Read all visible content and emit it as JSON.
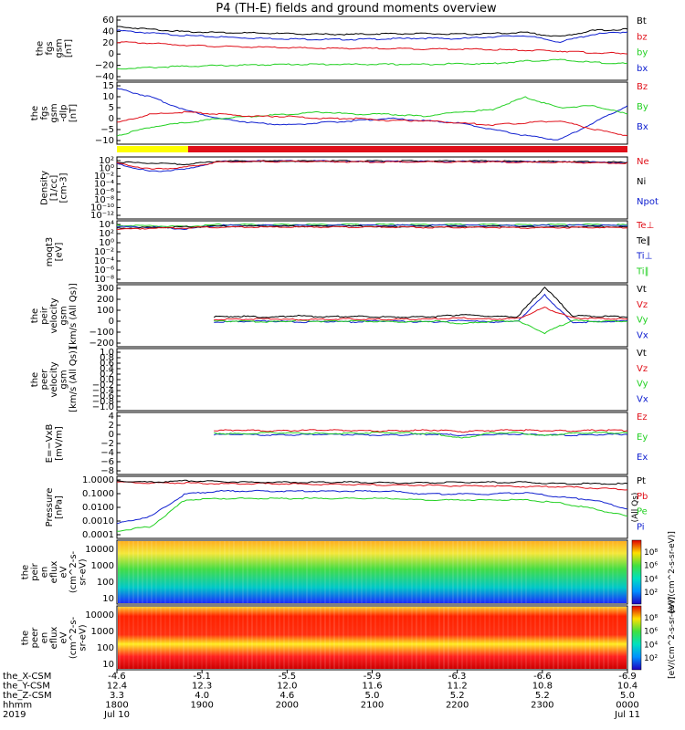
{
  "title": "P4 (TH-E) fields and ground moments overview",
  "colors": {
    "black": "#000000",
    "red": "#e0101a",
    "green": "#22d022",
    "blue": "#1020d0",
    "yellow": "#ffff00"
  },
  "time_axis": {
    "start_hhmm": "1800",
    "end_hhmm": "0000",
    "ticks": [
      {
        "hhmm": "1800",
        "X": "-4.6",
        "Y": "12.4",
        "Z": "3.3"
      },
      {
        "hhmm": "1900",
        "X": "-5.1",
        "Y": "12.3",
        "Z": "4.0"
      },
      {
        "hhmm": "2000",
        "X": "-5.5",
        "Y": "12.0",
        "Z": "4.6"
      },
      {
        "hhmm": "2100",
        "X": "-5.9",
        "Y": "11.6",
        "Z": "5.0"
      },
      {
        "hhmm": "2200",
        "X": "-6.3",
        "Y": "11.2",
        "Z": "5.2"
      },
      {
        "hhmm": "2300",
        "X": "-6.6",
        "Y": "10.8",
        "Z": "5.2"
      },
      {
        "hhmm": "0000",
        "X": "-6.9",
        "Y": "10.4",
        "Z": "5.0"
      }
    ],
    "row_labels": [
      "the_X-CSM",
      "the_Y-CSM",
      "the_Z-CSM",
      "hhmm",
      "2019"
    ],
    "date_left": "Jul 10",
    "date_right": "Jul 11"
  },
  "chart_data": [
    {
      "type": "line",
      "title": "",
      "ylabel": [
        "the",
        "fgs",
        "gsm",
        "[nT]"
      ],
      "yticks": [
        "60",
        "40",
        "20",
        "0",
        "−20",
        "−40"
      ],
      "ylim": [
        -40,
        60
      ],
      "legend": [
        {
          "name": "Bt",
          "color": "black"
        },
        {
          "name": "bz",
          "color": "red"
        },
        {
          "name": "by",
          "color": "green"
        },
        {
          "name": "bx",
          "color": "blue"
        }
      ],
      "series": [
        {
          "name": "Bt",
          "color": "black",
          "values": [
            44,
            40,
            36,
            35,
            34,
            33,
            32,
            32,
            33,
            33,
            32,
            33,
            35,
            28,
            38,
            40
          ]
        },
        {
          "name": "bz",
          "color": "red",
          "values": [
            20,
            18,
            15,
            13,
            12,
            11,
            10,
            10,
            10,
            9,
            9,
            8,
            7,
            6,
            3,
            2
          ]
        },
        {
          "name": "by",
          "color": "green",
          "values": [
            -22,
            -20,
            -18,
            -17,
            -16,
            -15,
            -15,
            -15,
            -15,
            -15,
            -14,
            -14,
            -10,
            -8,
            -12,
            -14
          ]
        },
        {
          "name": "bx",
          "color": "blue",
          "values": [
            38,
            34,
            30,
            28,
            26,
            25,
            24,
            24,
            25,
            26,
            25,
            28,
            30,
            20,
            32,
            36
          ]
        }
      ]
    },
    {
      "type": "line",
      "title": "",
      "ylabel": [
        "the",
        "fgs",
        "gsm",
        "-dlp",
        "[nT]"
      ],
      "yticks": [
        "15",
        "10",
        "5",
        "0",
        "−5",
        "−10"
      ],
      "ylim": [
        -12,
        17
      ],
      "legend": [
        {
          "name": "Bz",
          "color": "red"
        },
        {
          "name": "By",
          "color": "green"
        },
        {
          "name": "Bx",
          "color": "blue"
        }
      ],
      "series": [
        {
          "name": "Bz",
          "color": "red",
          "values": [
            -2,
            2,
            3,
            2,
            1,
            1,
            0,
            0,
            -1,
            -1,
            -2,
            -3,
            -2,
            -1,
            -5,
            -8
          ]
        },
        {
          "name": "By",
          "color": "green",
          "values": [
            -8,
            -4,
            -2,
            0,
            1,
            2,
            3,
            2,
            2,
            1,
            3,
            4,
            10,
            5,
            6,
            2
          ]
        },
        {
          "name": "Bx",
          "color": "blue",
          "values": [
            14,
            10,
            4,
            0,
            -2,
            -3,
            -2,
            -1,
            0,
            -1,
            -2,
            -5,
            -8,
            -10,
            -2,
            6
          ]
        }
      ]
    },
    {
      "type": "line",
      "title": "",
      "ylabel": [
        "Density",
        "[1/cc]",
        "[cm-3]"
      ],
      "yticks": [
        "10²",
        "10⁰",
        "10⁻²",
        "10⁻⁴",
        "10⁻⁶",
        "10⁻⁸",
        "10⁻¹⁰",
        "10⁻¹²"
      ],
      "ylim": [
        -13,
        2
      ],
      "log": true,
      "legend": [
        {
          "name": "Ne",
          "color": "red"
        },
        {
          "name": "Ni",
          "color": "black"
        },
        {
          "name": "Npot",
          "color": "blue"
        }
      ],
      "series": [
        {
          "name": "Ne",
          "color": "red",
          "values": [
            0.5,
            -1,
            -0.5,
            0.8,
            0.9,
            0.9,
            0.9,
            0.8,
            0.8,
            0.8,
            0.8,
            0.8,
            0.7,
            0.7,
            0.6,
            0.5
          ]
        },
        {
          "name": "Ni",
          "color": "black",
          "values": [
            0.8,
            0.5,
            0.2,
            1,
            1,
            1,
            1,
            1,
            1,
            1,
            1,
            1,
            0.9,
            0.9,
            0.8,
            0.7
          ]
        },
        {
          "name": "Npot",
          "color": "blue",
          "values": [
            0.3,
            -1.5,
            -1,
            0.9,
            1,
            1,
            1,
            0.9,
            0.9,
            0.9,
            0.9,
            0.9,
            0.8,
            0.8,
            0.7,
            0.6
          ]
        }
      ]
    },
    {
      "type": "line",
      "title": "",
      "ylabel": [
        "moqt3",
        "[eV]"
      ],
      "yticks": [
        "10⁴",
        "10²",
        "10⁰",
        "10⁻²",
        "10⁻⁴",
        "10⁻⁶",
        "10⁻⁸"
      ],
      "ylim": [
        -10,
        5
      ],
      "log": true,
      "legend": [
        {
          "name": "Te⊥",
          "color": "red"
        },
        {
          "name": "Te∥",
          "color": "black"
        },
        {
          "name": "Ti⊥",
          "color": "blue"
        },
        {
          "name": "Ti∥",
          "color": "green"
        }
      ],
      "series": [
        {
          "name": "Te⊥",
          "color": "red",
          "values": [
            3,
            3.2,
            3.3,
            3.5,
            3.5,
            3.5,
            3.5,
            3.5,
            3.5,
            3.4,
            3.4,
            3.4,
            3.3,
            3.4,
            3.4,
            3.3
          ]
        },
        {
          "name": "Te∥",
          "color": "black",
          "values": [
            3.2,
            3.4,
            3.5,
            3.7,
            3.7,
            3.7,
            3.7,
            3.7,
            3.6,
            3.6,
            3.6,
            3.6,
            3.5,
            3.6,
            3.6,
            3.5
          ]
        },
        {
          "name": "Ti⊥",
          "color": "blue",
          "values": [
            3.6,
            3.5,
            3,
            3.9,
            3.9,
            3.9,
            3.9,
            3.9,
            3.9,
            3.9,
            3.9,
            3.9,
            3.8,
            3.9,
            3.9,
            3.9
          ]
        },
        {
          "name": "Ti∥",
          "color": "green",
          "values": [
            3.9,
            3.8,
            3.6,
            4.1,
            4.1,
            4.1,
            4.1,
            4.1,
            4.1,
            4.1,
            4.1,
            4.1,
            4.0,
            4.1,
            4.1,
            4.0
          ]
        }
      ]
    },
    {
      "type": "line",
      "title": "",
      "ylabel": [
        "the",
        "peir",
        "velocity",
        "gsm",
        "[km/s (All Qs)]"
      ],
      "yticks": [
        "300",
        "200",
        "100",
        "0",
        "−100",
        "−200"
      ],
      "ylim": [
        -220,
        320
      ],
      "legend": [
        {
          "name": "Vt",
          "color": "black"
        },
        {
          "name": "Vz",
          "color": "red"
        },
        {
          "name": "Vy",
          "color": "green"
        },
        {
          "name": "Vx",
          "color": "blue"
        }
      ],
      "start_fraction": 0.19,
      "series": [
        {
          "name": "Vt",
          "color": "black",
          "values": [
            40,
            45,
            35,
            50,
            40,
            45,
            40,
            38,
            42,
            60,
            45,
            40,
            300,
            50,
            45,
            40
          ]
        },
        {
          "name": "Vz",
          "color": "red",
          "values": [
            20,
            18,
            25,
            15,
            20,
            22,
            18,
            20,
            22,
            30,
            20,
            25,
            120,
            30,
            25,
            20
          ]
        },
        {
          "name": "Vy",
          "color": "green",
          "values": [
            0,
            5,
            -5,
            10,
            0,
            5,
            0,
            -5,
            5,
            -20,
            0,
            5,
            -100,
            10,
            0,
            5
          ]
        },
        {
          "name": "Vx",
          "color": "blue",
          "values": [
            -5,
            0,
            5,
            -5,
            0,
            -5,
            5,
            0,
            -5,
            10,
            -5,
            0,
            230,
            -10,
            0,
            5
          ]
        }
      ]
    },
    {
      "type": "line",
      "title": "",
      "ylabel": [
        "the",
        "peer",
        "velocity",
        "gsm",
        "[km/s (All Qs)]"
      ],
      "yticks": [
        "1.0",
        "0.8",
        "0.6",
        "0.4",
        "0.2",
        "0.0",
        "−0.2",
        "−0.4",
        "−0.6",
        "−0.8",
        "−1.0"
      ],
      "ylim": [
        -1,
        1
      ],
      "legend": [
        {
          "name": "Vt",
          "color": "black"
        },
        {
          "name": "Vz",
          "color": "red"
        },
        {
          "name": "Vy",
          "color": "green"
        },
        {
          "name": "Vx",
          "color": "blue"
        }
      ],
      "series": []
    },
    {
      "type": "line",
      "title": "",
      "ylabel": [
        "E=−VxB",
        "[mV/m]"
      ],
      "yticks": [
        "4",
        "2",
        "0",
        "−2",
        "−4",
        "−6",
        "−8"
      ],
      "ylim": [
        -8,
        4
      ],
      "legend": [
        {
          "name": "Ez",
          "color": "red"
        },
        {
          "name": "Ey",
          "color": "green"
        },
        {
          "name": "Ex",
          "color": "blue"
        }
      ],
      "start_fraction": 0.19,
      "series": [
        {
          "name": "Ez",
          "color": "red",
          "values": [
            0.5,
            0.6,
            0.4,
            0.5,
            0.6,
            0.5,
            0.4,
            0.5,
            0.6,
            0.3,
            0.5,
            0.6,
            0.5,
            0.4,
            0.6,
            0.5
          ]
        },
        {
          "name": "Ey",
          "color": "green",
          "values": [
            0,
            -0.2,
            0.1,
            0,
            -0.1,
            0,
            0.1,
            0,
            -0.1,
            -1,
            0,
            0.1,
            -0.5,
            0,
            0.1,
            0
          ]
        },
        {
          "name": "Ex",
          "color": "blue",
          "values": [
            -0.3,
            -0.2,
            -0.4,
            -0.3,
            -0.2,
            -0.3,
            -0.4,
            -0.3,
            -0.2,
            -0.4,
            -0.3,
            -0.2,
            -0.3,
            -0.4,
            -0.3,
            -0.2
          ]
        }
      ]
    },
    {
      "type": "line",
      "title": "",
      "ylabel": [
        "Pressure",
        "[nPa]"
      ],
      "yticks": [
        "1.0000",
        "0.1000",
        "0.0100",
        "0.0010",
        "0.0001"
      ],
      "ylim": [
        -4,
        0.2
      ],
      "log": true,
      "legend": [
        {
          "name": "Pt",
          "color": "black"
        },
        {
          "name": "Pb",
          "color": "red"
        },
        {
          "name": "Pe",
          "color": "green"
        },
        {
          "name": "Pi",
          "color": "blue"
        }
      ],
      "side_label": "(All Qs)",
      "series": [
        {
          "name": "Pt",
          "color": "black",
          "values": [
            -0.1,
            -0.2,
            -0.1,
            -0.15,
            -0.2,
            -0.2,
            -0.2,
            -0.2,
            -0.25,
            -0.25,
            -0.2,
            -0.2,
            -0.2,
            -0.3,
            -0.3,
            -0.3
          ]
        },
        {
          "name": "Pb",
          "color": "red",
          "values": [
            -0.2,
            -0.25,
            -0.25,
            -0.3,
            -0.3,
            -0.3,
            -0.35,
            -0.35,
            -0.4,
            -0.4,
            -0.45,
            -0.45,
            -0.5,
            -0.5,
            -0.6,
            -0.7
          ]
        },
        {
          "name": "Pe",
          "color": "green",
          "values": [
            -3.5,
            -3.2,
            -1.4,
            -1.3,
            -1.3,
            -1.3,
            -1.3,
            -1.3,
            -1.3,
            -1.4,
            -1.4,
            -1.4,
            -1.4,
            -1.6,
            -2,
            -2.5
          ]
        },
        {
          "name": "Pi",
          "color": "blue",
          "values": [
            -3,
            -2.5,
            -1,
            -0.8,
            -0.8,
            -0.8,
            -0.8,
            -0.8,
            -0.8,
            -1,
            -1,
            -1,
            -0.9,
            -1.2,
            -1.4,
            -2
          ]
        }
      ]
    },
    {
      "type": "heatmap",
      "title": "",
      "ylabel": [
        "the",
        "peir",
        "en",
        "eflux",
        "eV",
        "(cm^2-s-",
        "sr-eV)"
      ],
      "yticks": [
        "10000",
        "1000",
        "100",
        "10"
      ],
      "colorbar_ticks": [
        "10⁸",
        "10⁶",
        "10⁴",
        "10²"
      ],
      "colorbar_label": "[eV/(cm^2-s-sr-eV)]"
    },
    {
      "type": "heatmap",
      "title": "",
      "ylabel": [
        "the",
        "peer",
        "en",
        "eflux",
        "eV",
        "(cm^2-s-",
        "sr-eV)"
      ],
      "yticks": [
        "10000",
        "1000",
        "100",
        "10"
      ],
      "colorbar_ticks": [
        "10⁸",
        "10⁶",
        "10⁴",
        "10²"
      ],
      "colorbar_label": "[eV/(cm^2-s-sr-eV)]"
    }
  ]
}
